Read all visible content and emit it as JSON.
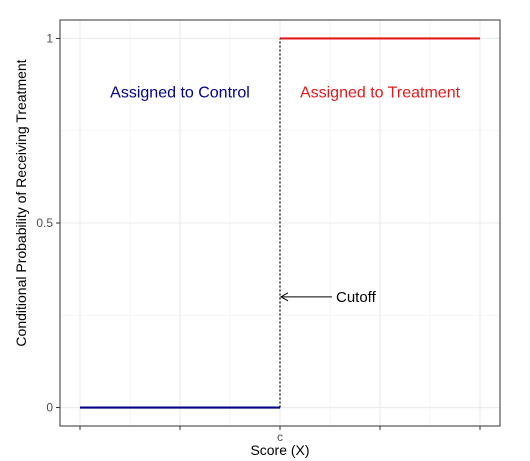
{
  "chart_data": {
    "type": "line",
    "xlabel": "Score (X)",
    "ylabel": "Conditional Probability of Receiving Treatment",
    "x_tick_labels": [
      "",
      "",
      "",
      "c",
      "",
      ""
    ],
    "y_ticks": [
      0,
      0.5,
      1
    ],
    "y_tick_labels": [
      "0",
      "0.5",
      "1"
    ],
    "ylim": [
      -0.05,
      1.05
    ],
    "grid": true,
    "legend": "none",
    "series": [
      {
        "color": "#00008B",
        "x": [
          0,
          1
        ],
        "y": [
          0,
          0
        ]
      },
      {
        "color": "#E31A1C",
        "x": [
          1,
          2
        ],
        "y": [
          1,
          1
        ]
      }
    ],
    "cutoff": {
      "x": 1,
      "label": "c",
      "style": "dotted",
      "color": "#000000"
    },
    "annotations": {
      "control": {
        "text": "Assigned to Control",
        "color": "#00008B"
      },
      "treatment": {
        "text": "Assigned to Treatment",
        "color": "#E31A1C"
      },
      "cutoff": {
        "text": "Cutoff",
        "color": "#000000",
        "y": 0.3
      }
    }
  }
}
